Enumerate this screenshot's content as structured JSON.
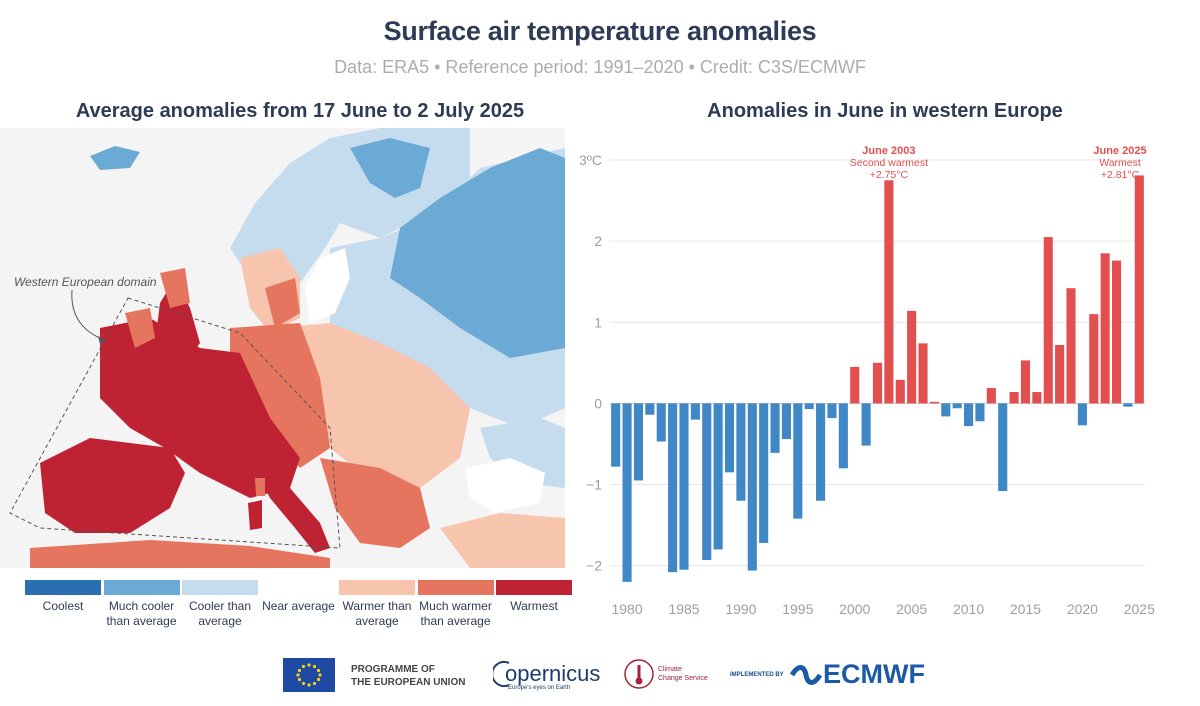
{
  "header": {
    "title": "Surface air temperature anomalies",
    "subtitle": "Data: ERA5 • Reference period: 1991–2020 • Credit: C3S/ECMWF"
  },
  "map": {
    "title": "Average anomalies from 17 June to 2 July 2025",
    "domain_label": "Western European domain",
    "legend": [
      {
        "label": "Coolest",
        "color": "#2a70b0"
      },
      {
        "label": "Much cooler than average",
        "color": "#6aaad4"
      },
      {
        "label": "Cooler than average",
        "color": "#c5dcef"
      },
      {
        "label": "Near average",
        "color": "#ffffff"
      },
      {
        "label": "Warmer than average",
        "color": "#f7c4ad"
      },
      {
        "label": "Much warmer than average",
        "color": "#e5755e"
      },
      {
        "label": "Warmest",
        "color": "#be2233"
      }
    ]
  },
  "chart_data": {
    "type": "bar",
    "title": "Anomalies in June in western Europe",
    "x": [
      1979,
      1980,
      1981,
      1982,
      1983,
      1984,
      1985,
      1986,
      1987,
      1988,
      1989,
      1990,
      1991,
      1992,
      1993,
      1994,
      1995,
      1996,
      1997,
      1998,
      1999,
      2000,
      2001,
      2002,
      2003,
      2004,
      2005,
      2006,
      2007,
      2008,
      2009,
      2010,
      2011,
      2012,
      2013,
      2014,
      2015,
      2016,
      2017,
      2018,
      2019,
      2020,
      2021,
      2022,
      2023,
      2024,
      2025
    ],
    "values": [
      -0.78,
      -2.2,
      -0.95,
      -0.14,
      -0.47,
      -2.08,
      -2.05,
      -0.2,
      -1.93,
      -1.8,
      -0.85,
      -1.2,
      -2.06,
      -1.72,
      -0.61,
      -0.44,
      -1.42,
      -0.07,
      -1.2,
      -0.18,
      -0.8,
      0.45,
      -0.52,
      0.5,
      2.75,
      0.29,
      1.14,
      0.74,
      0.02,
      -0.16,
      -0.06,
      -0.28,
      -0.22,
      0.19,
      -1.08,
      0.14,
      0.53,
      0.14,
      2.05,
      0.72,
      1.42,
      -0.27,
      1.1,
      1.85,
      1.76,
      -0.04,
      2.81
    ],
    "ylim": [
      -2.3,
      3.0
    ],
    "yticks": [
      {
        "value": 3,
        "label": "3ºC"
      },
      {
        "value": 2,
        "label": "2"
      },
      {
        "value": 1,
        "label": "1"
      },
      {
        "value": 0,
        "label": "0"
      },
      {
        "value": -1,
        "label": "−1"
      },
      {
        "value": -2,
        "label": "−2"
      }
    ],
    "xticks": [
      1980,
      1985,
      1990,
      1995,
      2000,
      2005,
      2010,
      2015,
      2020,
      2025
    ],
    "grid": true,
    "colors": {
      "positive": "#e34f4f",
      "negative": "#3f88c5"
    },
    "annotations": [
      {
        "year": 2003,
        "lines": [
          "June 2003",
          "Second warmest",
          "+2.75°C"
        ]
      },
      {
        "year": 2025,
        "lines": [
          "June 2025",
          "Warmest",
          "+2.81°C"
        ]
      }
    ]
  },
  "footer": {
    "eu_line1": "PROGRAMME OF",
    "eu_line2": "THE EUROPEAN UNION",
    "copernicus": "opernicus",
    "copernicus_tag": "Europe's eyes on Earth",
    "c3s_line1": "Climate",
    "c3s_line2": "Change Service",
    "implemented_by": "IMPLEMENTED BY",
    "ecmwf": "ECMWF"
  }
}
